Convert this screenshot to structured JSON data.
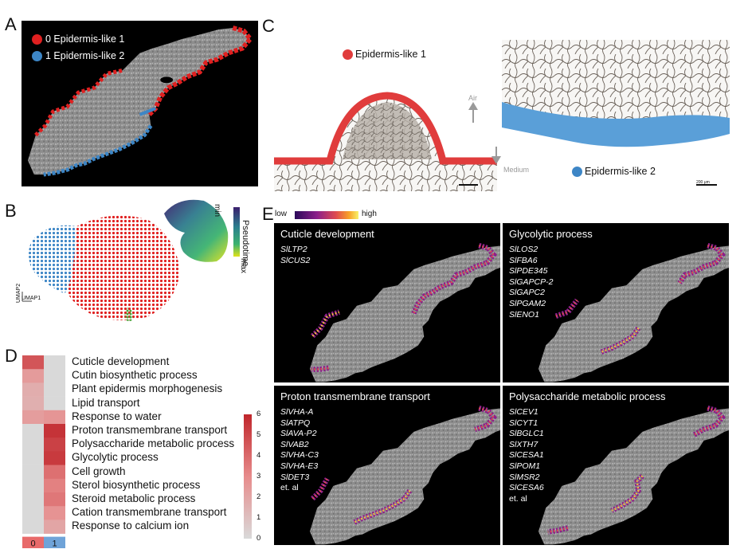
{
  "panel_labels": [
    "A",
    "B",
    "C",
    "D",
    "E"
  ],
  "panelA": {
    "legend": [
      {
        "label": "0 Epidermis-like 1",
        "color": "#e02020"
      },
      {
        "label": "1 Epidermis-like 2",
        "color": "#3d86c6"
      }
    ]
  },
  "panelB": {
    "pseudotime_label": "Pseudotime",
    "min_label": "min",
    "max_label": "max",
    "umap1": "UMAP1",
    "umap2": "UMAP2"
  },
  "panelC": {
    "left_label": "Epidermis-like 1",
    "right_label": "Epidermis-like 2",
    "air_label": "Air",
    "medium_label": "Medium",
    "scale_label": "200 μm",
    "colors": {
      "epi1": "#e03c3c",
      "epi2": "#5a9fd8"
    }
  },
  "panelD": {
    "terms": [
      "Cuticle development",
      "Cutin biosynthetic process",
      "Plant epidermis morphogenesis",
      "Lipid transport",
      "Response to water",
      "Proton transmembrane transport",
      "Polysaccharide metabolic process",
      "Glycolytic process",
      "Cell growth",
      "Sterol biosynthetic process",
      "Steroid metabolic process",
      "Cation transmembrane transport",
      "Response to calcium ion"
    ],
    "values_col0": [
      4.6,
      2.4,
      1.7,
      1.6,
      2.3,
      0,
      0,
      0,
      0,
      0,
      0,
      0,
      0
    ],
    "values_col1": [
      0,
      0,
      0,
      0,
      2.6,
      5.6,
      5.2,
      5.4,
      3.8,
      3.3,
      3.6,
      2.7,
      2.0
    ],
    "col_labels": [
      "0",
      "1"
    ],
    "colorbar_ticks": [
      "6",
      "5",
      "4",
      "3",
      "2",
      "1",
      "0"
    ],
    "colorbar_range": [
      0,
      6
    ]
  },
  "panelE": {
    "colorbar_low": "low",
    "colorbar_high": "high",
    "panels": [
      {
        "title": "Cuticle development",
        "genes": [
          "SlLTP2",
          "SlCUS2"
        ]
      },
      {
        "title": "Glycolytic process",
        "genes": [
          "SlLOS2",
          "SlFBA6",
          "SlPDE345",
          "SlGAPCP-2",
          "SlGAPC2",
          "SlPGAM2",
          "SlENO1"
        ]
      },
      {
        "title": "Proton transmembrane transport",
        "genes": [
          "SlVHA-A",
          "SlATPQ",
          "SlAVA-P2",
          "SlVAB2",
          "SlVHA-C3",
          "SlVHA-E3",
          "SlDET3",
          "et. al"
        ]
      },
      {
        "title": "Polysaccharide metabolic process",
        "genes": [
          "SlCEV1",
          "SlCYT1",
          "SlBGLC1",
          "SlXTH7",
          "SlCESA1",
          "SlPOM1",
          "SlMSR2",
          "SlCESA6",
          "et. al"
        ]
      }
    ]
  }
}
